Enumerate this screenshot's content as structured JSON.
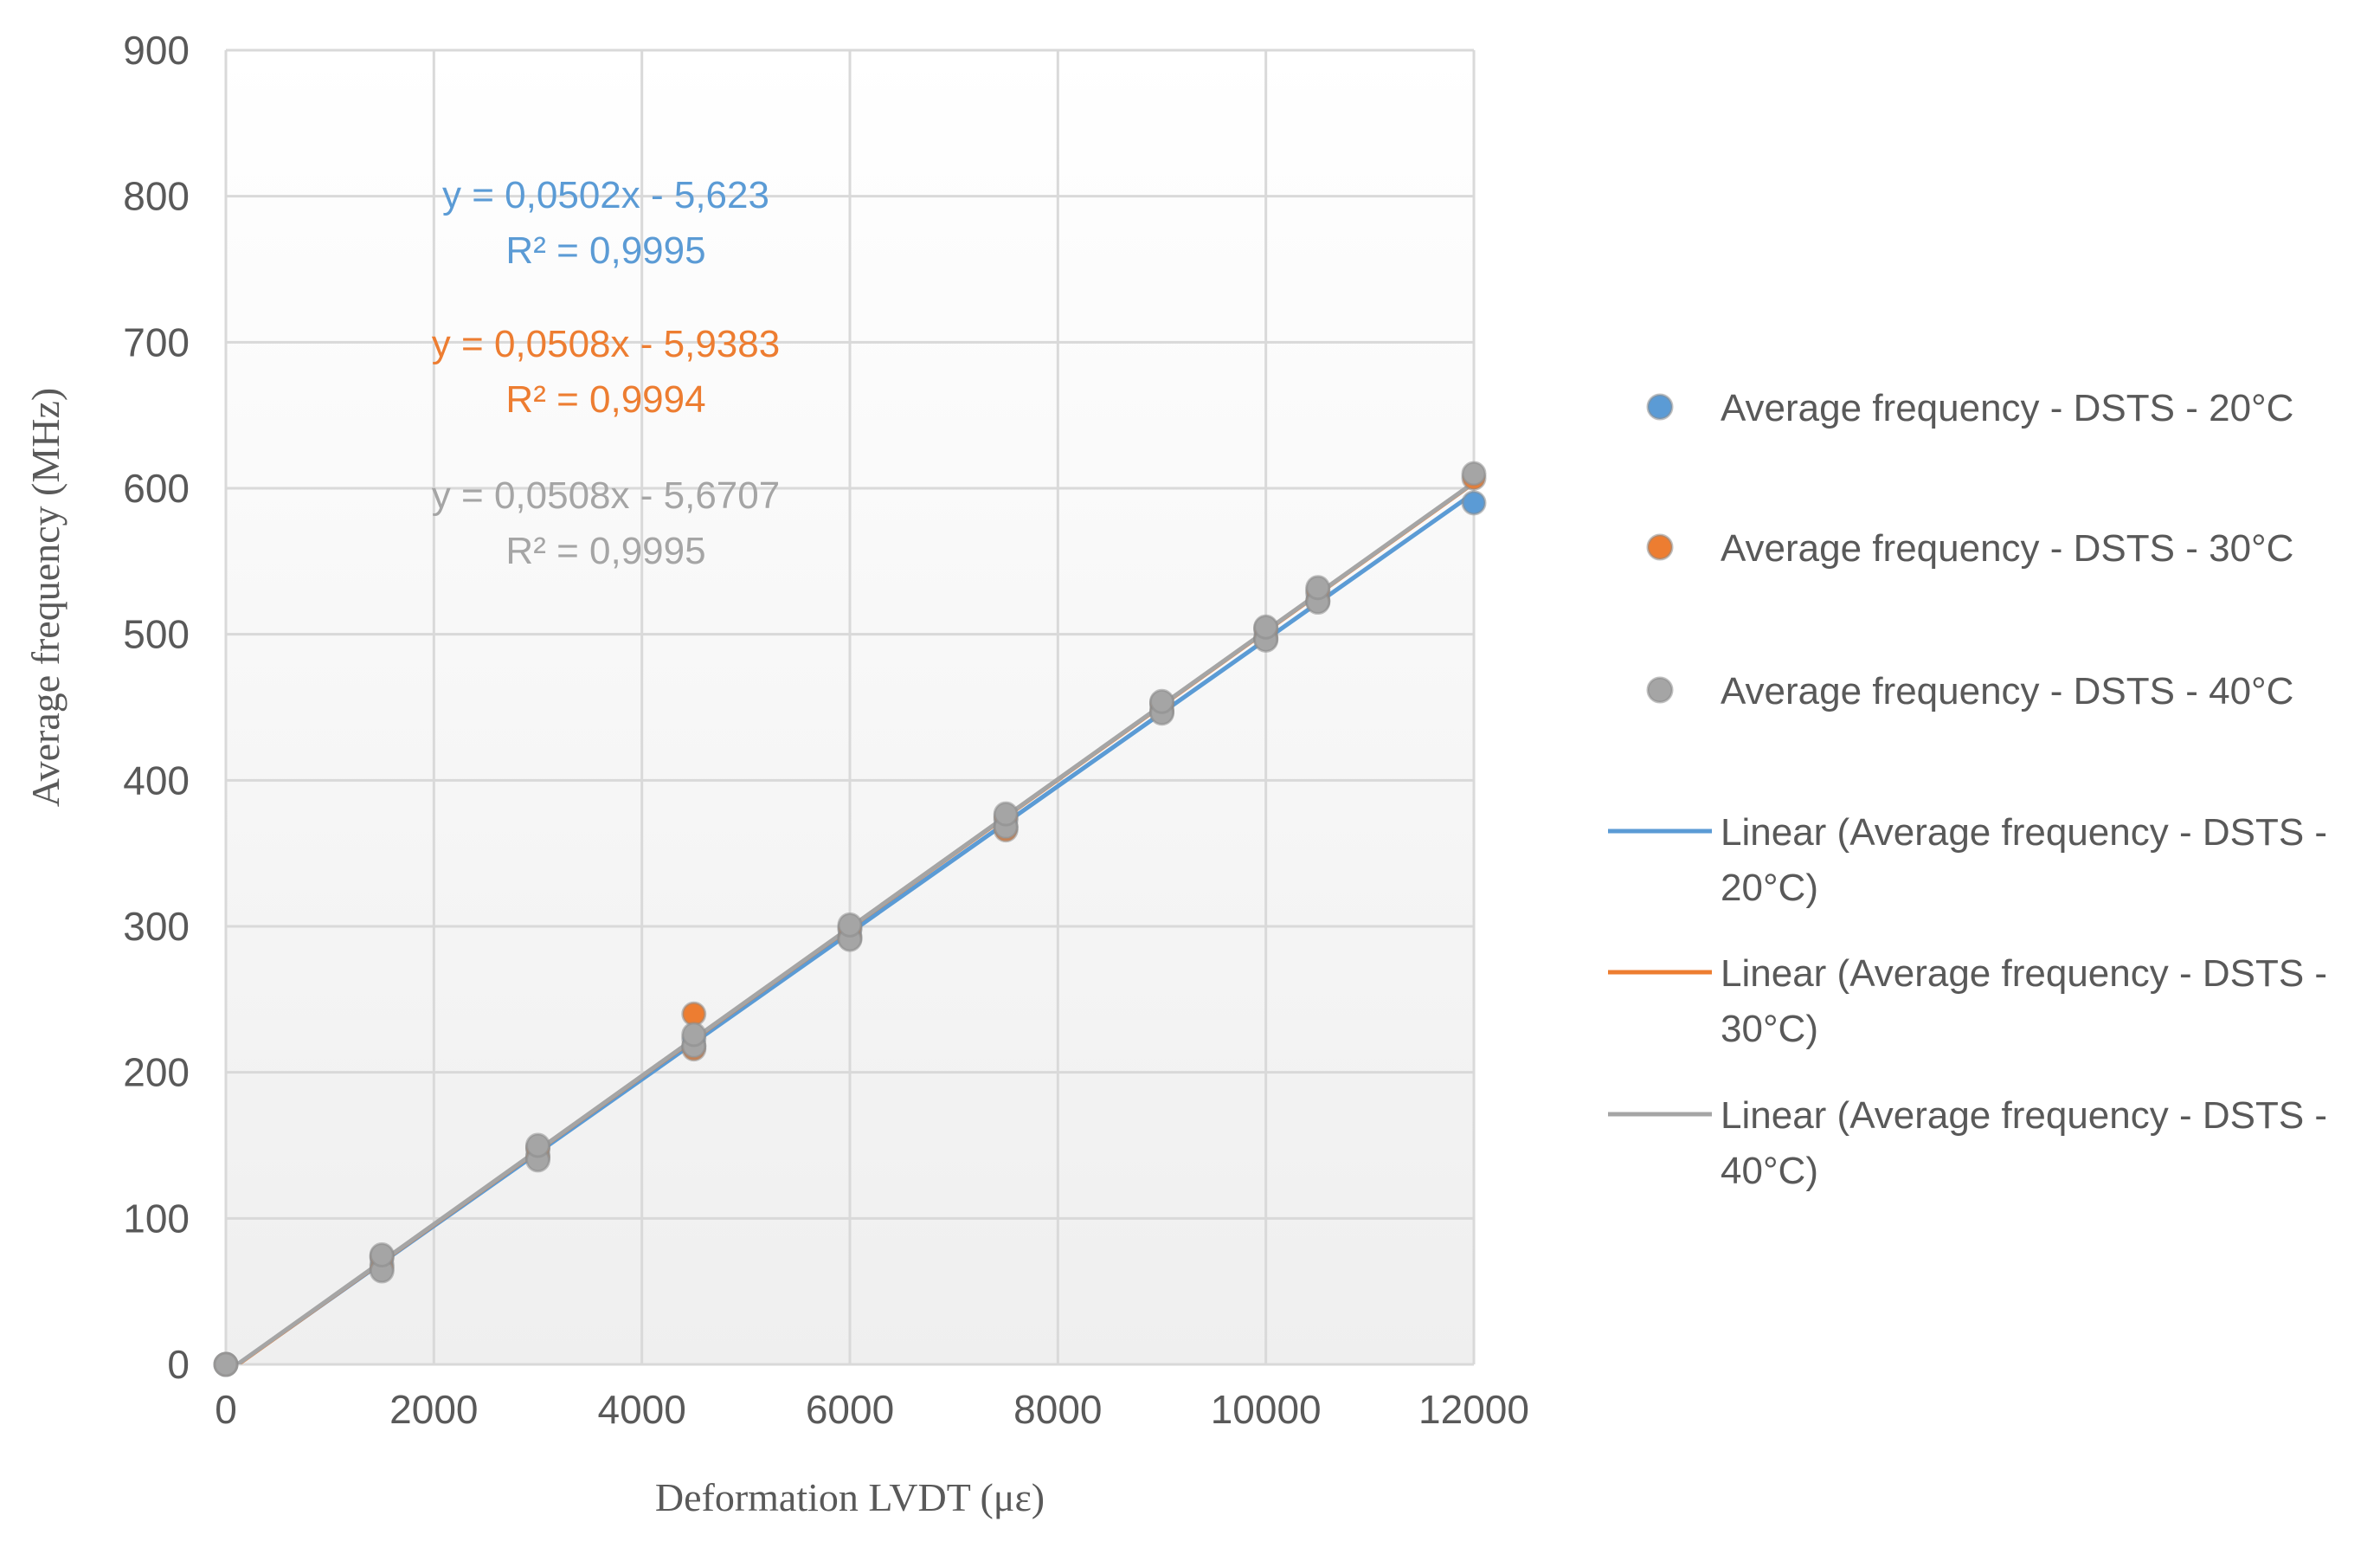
{
  "chart_data": {
    "type": "scatter",
    "xlabel": "Deformation LVDT (με)",
    "ylabel": "Average frequency  (MHz)",
    "xlim": [
      0,
      12000
    ],
    "ylim": [
      0,
      900
    ],
    "x_ticks": [
      "0",
      "2000",
      "4000",
      "6000",
      "8000",
      "10000",
      "12000"
    ],
    "y_ticks": [
      "0",
      "100",
      "200",
      "300",
      "400",
      "500",
      "600",
      "700",
      "800",
      "900"
    ],
    "grid": true,
    "legend_position": "right",
    "series": [
      {
        "name": "Average frequency - DSTS - 20°C",
        "color": "#5B9BD5",
        "points": [
          [
            0,
            0
          ],
          [
            1500,
            68
          ],
          [
            1500,
            73
          ],
          [
            3000,
            143
          ],
          [
            3000,
            148
          ],
          [
            4500,
            218
          ],
          [
            4500,
            223
          ],
          [
            6000,
            293
          ],
          [
            6000,
            298
          ],
          [
            7500,
            368
          ],
          [
            7500,
            373
          ],
          [
            9000,
            448
          ],
          [
            9000,
            452
          ],
          [
            10000,
            498
          ],
          [
            10000,
            503
          ],
          [
            10500,
            523
          ],
          [
            10500,
            528
          ],
          [
            12000,
            590
          ]
        ]
      },
      {
        "name": "Average frequency - DSTS - 30°C",
        "color": "#ED7D31",
        "points": [
          [
            0,
            0
          ],
          [
            1500,
            66
          ],
          [
            1500,
            74
          ],
          [
            3000,
            142
          ],
          [
            3000,
            148
          ],
          [
            4500,
            216
          ],
          [
            4500,
            240
          ],
          [
            6000,
            292
          ],
          [
            6000,
            299
          ],
          [
            7500,
            366
          ],
          [
            7500,
            375
          ],
          [
            9000,
            447
          ],
          [
            9000,
            453
          ],
          [
            10000,
            497
          ],
          [
            10000,
            504
          ],
          [
            10500,
            523
          ],
          [
            10500,
            530
          ],
          [
            12000,
            607
          ]
        ]
      },
      {
        "name": "Average frequency - DSTS - 40°C",
        "color": "#A5A5A5",
        "points": [
          [
            0,
            0
          ],
          [
            1500,
            64
          ],
          [
            1500,
            75
          ],
          [
            3000,
            140
          ],
          [
            3000,
            150
          ],
          [
            4500,
            218
          ],
          [
            4500,
            226
          ],
          [
            6000,
            291
          ],
          [
            6000,
            301
          ],
          [
            7500,
            368
          ],
          [
            7500,
            377
          ],
          [
            9000,
            446
          ],
          [
            9000,
            454
          ],
          [
            10000,
            496
          ],
          [
            10000,
            505
          ],
          [
            10500,
            522
          ],
          [
            10500,
            532
          ],
          [
            12000,
            610
          ]
        ]
      }
    ],
    "trendlines": [
      {
        "name": "Linear (Average frequency - DSTS - 20°C)",
        "name_lines": [
          "Linear (Average frequency - DSTS -",
          "20°C)"
        ],
        "color": "#5B9BD5",
        "slope": 0.0502,
        "intercept": -5.623,
        "equation": "y = 0,0502x - 5,623",
        "r2": "R² = 0,9995"
      },
      {
        "name": "Linear (Average frequency - DSTS - 30°C)",
        "name_lines": [
          "Linear (Average frequency - DSTS -",
          "30°C)"
        ],
        "color": "#ED7D31",
        "slope": 0.0508,
        "intercept": -5.9383,
        "equation": "y = 0,0508x - 5,9383",
        "r2": "R² = 0,9994"
      },
      {
        "name": "Linear (Average frequency - DSTS - 40°C)",
        "name_lines": [
          "Linear (Average frequency - DSTS -",
          "40°C)"
        ],
        "color": "#A5A5A5",
        "slope": 0.0508,
        "intercept": -5.6707,
        "equation": "y = 0,0508x - 5,6707",
        "r2": "R² = 0,9995"
      }
    ]
  }
}
